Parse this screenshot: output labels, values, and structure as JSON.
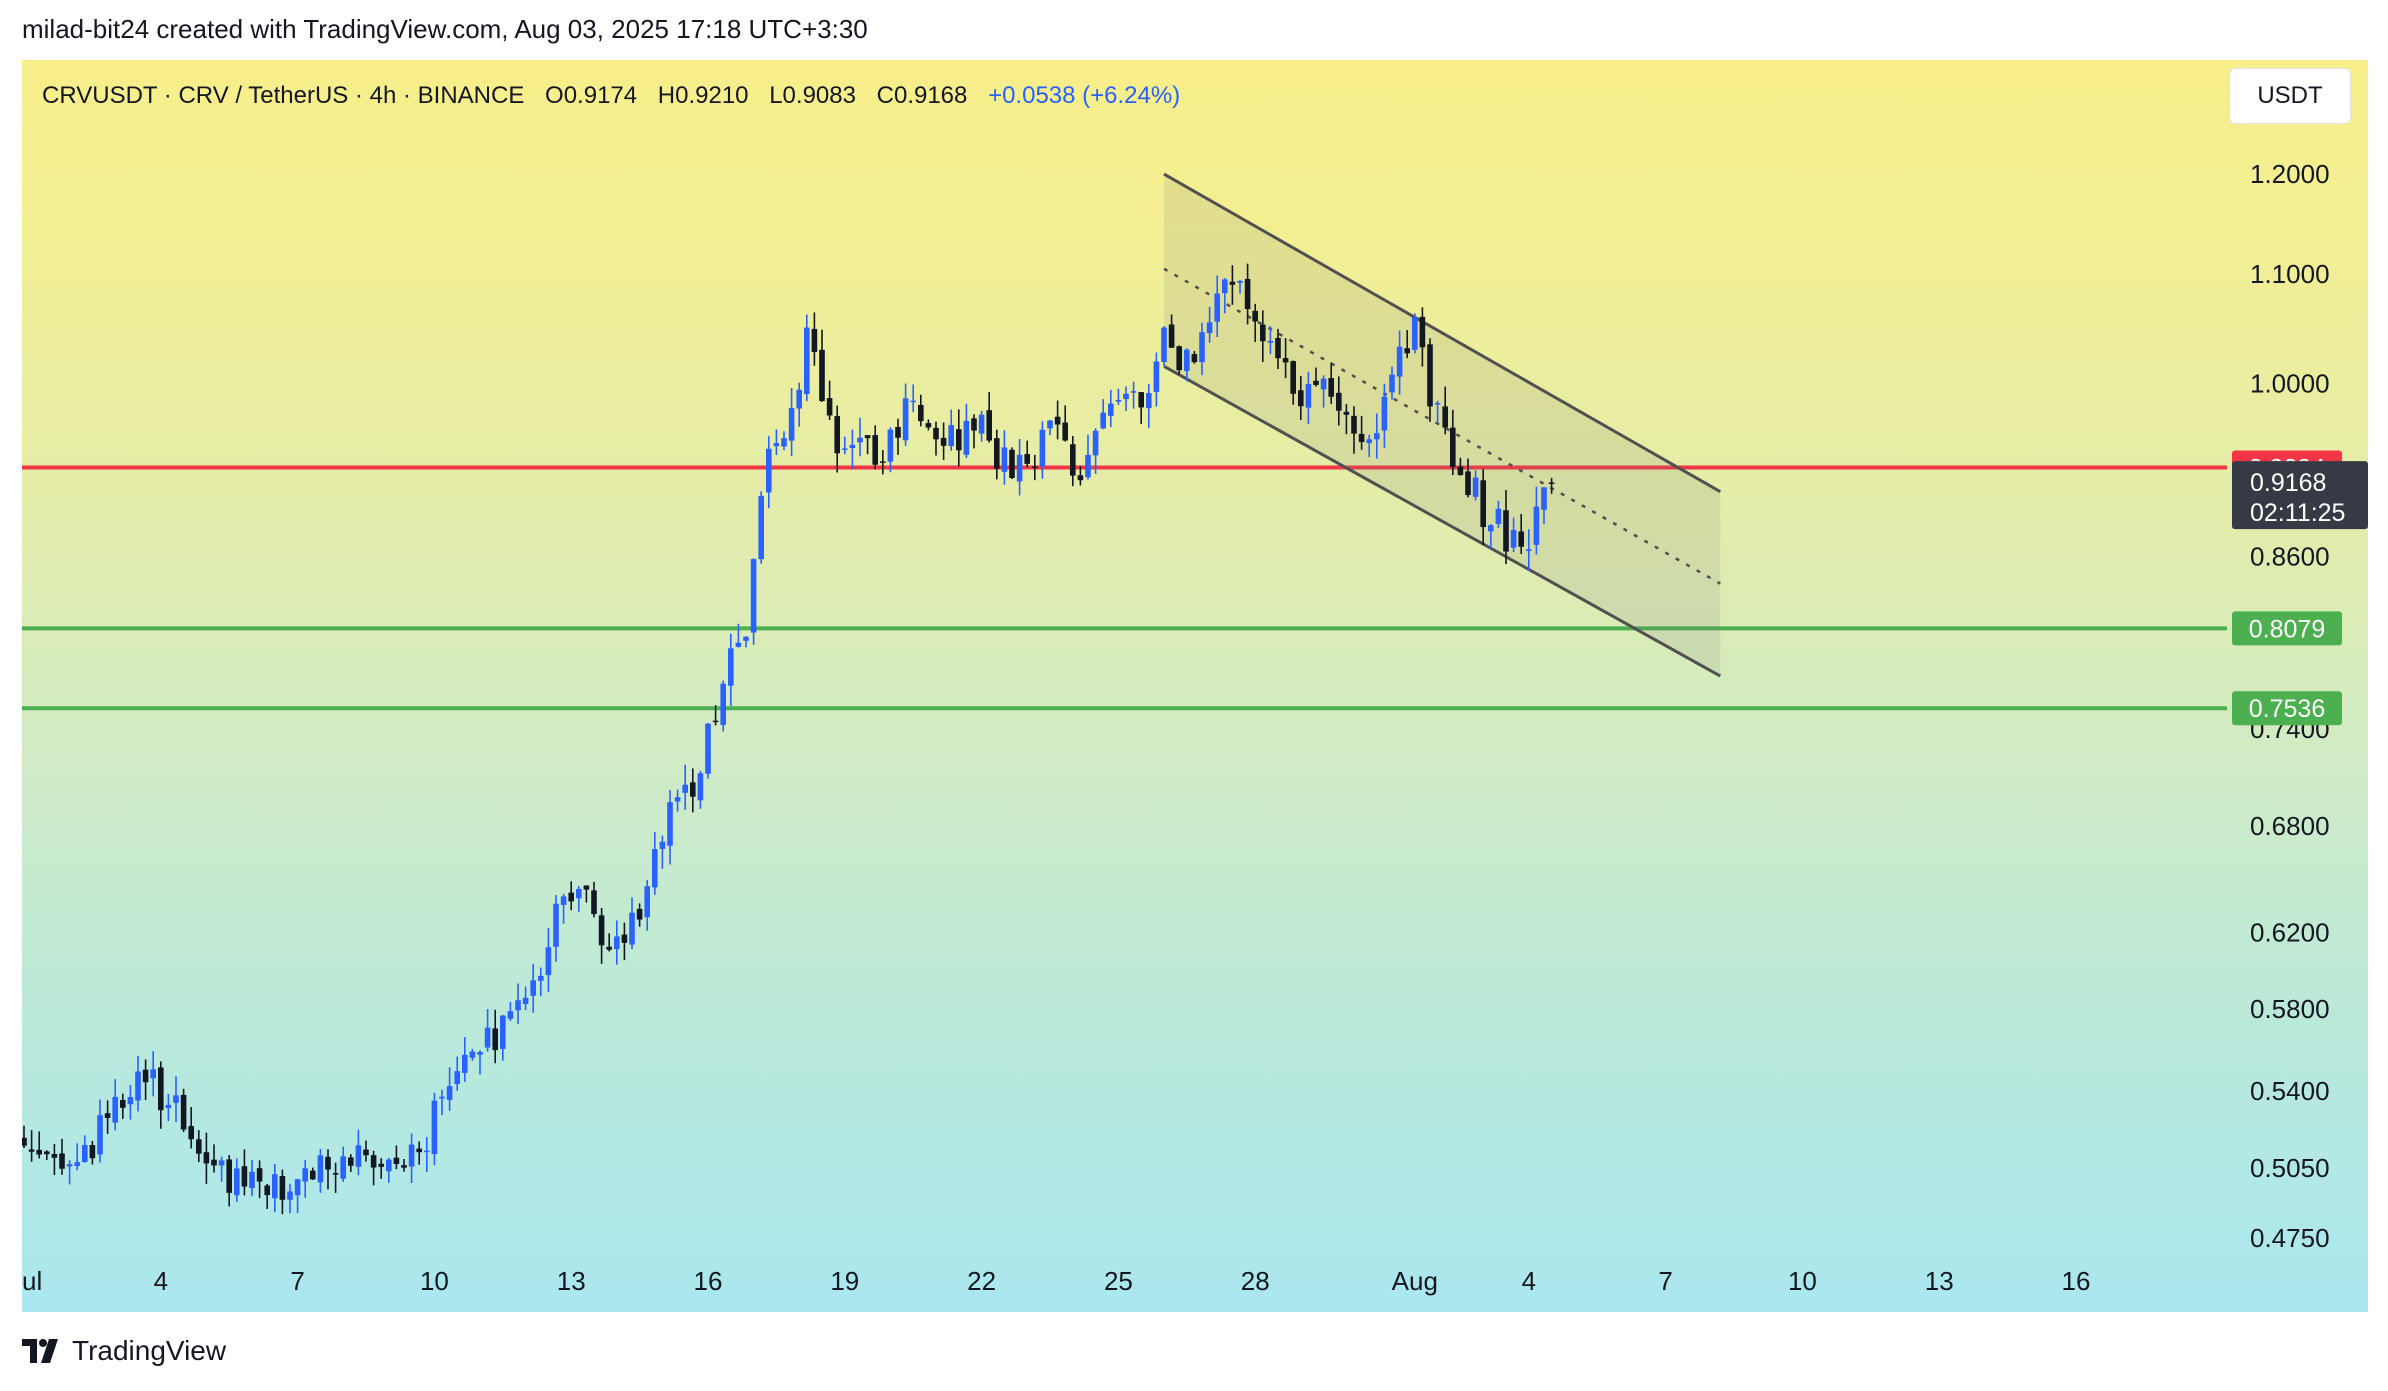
{
  "credit": "milad-bit24 created with TradingView.com, Aug 03, 2025 17:18 UTC+3:30",
  "header": {
    "symbol": "CRVUSDT · CRV / TetherUS · 4h · BINANCE",
    "open": "O0.9174",
    "high": "H0.9210",
    "low": "L0.9083",
    "close": "C0.9168",
    "change": "+0.0538 (+6.24%)"
  },
  "currency_button": "USDT",
  "footer_logo_text": "TradingView",
  "colors": {
    "up": "#2962ff",
    "down": "#131722",
    "resistance": "#f23645",
    "support": "#4caf50",
    "channel": "#505050",
    "last_price_tag": "#363a45"
  },
  "chart_data": {
    "type": "candlestick",
    "symbol": "CRVUSDT",
    "interval": "4h",
    "y_scale": "log",
    "ylim": [
      0.458,
      1.28
    ],
    "y_ticks": [
      "1.2000",
      "1.1000",
      "1.0000",
      "0.6800",
      "0.6200",
      "0.5800",
      "0.5400",
      "0.5050",
      "0.4750"
    ],
    "hidden_y_ticks": [
      "0.8600",
      "0.7400"
    ],
    "x_ticks": [
      {
        "label": "ul",
        "day": 0
      },
      {
        "label": "4",
        "day": 3
      },
      {
        "label": "7",
        "day": 6
      },
      {
        "label": "10",
        "day": 9
      },
      {
        "label": "13",
        "day": 12
      },
      {
        "label": "16",
        "day": 15
      },
      {
        "label": "19",
        "day": 18
      },
      {
        "label": "22",
        "day": 21
      },
      {
        "label": "25",
        "day": 24
      },
      {
        "label": "28",
        "day": 27
      },
      {
        "label": "Aug",
        "day": 30.5
      },
      {
        "label": "4",
        "day": 33
      },
      {
        "label": "7",
        "day": 36
      },
      {
        "label": "10",
        "day": 39
      },
      {
        "label": "13",
        "day": 42
      },
      {
        "label": "16",
        "day": 45
      }
    ],
    "xlim_days": [
      0,
      47.3
    ],
    "close_path": [
      [
        0,
        0.518
      ],
      [
        1.0,
        0.505
      ],
      [
        1.7,
        0.522
      ],
      [
        2.3,
        0.54
      ],
      [
        2.7,
        0.548
      ],
      [
        3.0,
        0.538
      ],
      [
        3.3,
        0.532
      ],
      [
        3.8,
        0.506
      ],
      [
        4.5,
        0.501
      ],
      [
        5.3,
        0.498
      ],
      [
        6.0,
        0.5
      ],
      [
        6.7,
        0.508
      ],
      [
        7.5,
        0.512
      ],
      [
        8.3,
        0.51
      ],
      [
        8.7,
        0.514
      ],
      [
        9.0,
        0.528
      ],
      [
        9.5,
        0.552
      ],
      [
        10.0,
        0.564
      ],
      [
        10.6,
        0.569
      ],
      [
        11.0,
        0.58
      ],
      [
        11.5,
        0.62
      ],
      [
        11.8,
        0.643
      ],
      [
        12.3,
        0.636
      ],
      [
        12.7,
        0.612
      ],
      [
        13.3,
        0.624
      ],
      [
        13.9,
        0.662
      ],
      [
        14.3,
        0.7
      ],
      [
        14.8,
        0.71
      ],
      [
        15.0,
        0.735
      ],
      [
        15.5,
        0.785
      ],
      [
        15.9,
        0.82
      ],
      [
        16.1,
        0.905
      ],
      [
        16.4,
        0.955
      ],
      [
        16.8,
        0.975
      ],
      [
        17.2,
        1.045
      ],
      [
        17.5,
        1.0
      ],
      [
        17.9,
        0.94
      ],
      [
        18.2,
        0.965
      ],
      [
        18.6,
        0.935
      ],
      [
        19.2,
        0.965
      ],
      [
        19.6,
        0.985
      ],
      [
        20.0,
        0.965
      ],
      [
        20.6,
        0.955
      ],
      [
        21.0,
        0.975
      ],
      [
        21.4,
        0.935
      ],
      [
        21.9,
        0.925
      ],
      [
        22.4,
        0.96
      ],
      [
        22.8,
        0.95
      ],
      [
        23.1,
        0.925
      ],
      [
        23.5,
        0.955
      ],
      [
        24.0,
        0.975
      ],
      [
        24.6,
        0.985
      ],
      [
        24.9,
        1.05
      ],
      [
        25.3,
        1.02
      ],
      [
        25.9,
        1.045
      ],
      [
        26.3,
        1.08
      ],
      [
        26.6,
        1.095
      ],
      [
        26.9,
        1.06
      ],
      [
        27.5,
        1.025
      ],
      [
        28.1,
        0.985
      ],
      [
        28.6,
        1.01
      ],
      [
        29.0,
        0.975
      ],
      [
        29.5,
        0.955
      ],
      [
        30.0,
        1.01
      ],
      [
        30.5,
        1.05
      ],
      [
        30.9,
        0.985
      ],
      [
        31.3,
        0.935
      ],
      [
        31.7,
        0.92
      ],
      [
        32.0,
        0.895
      ],
      [
        32.4,
        0.88
      ],
      [
        32.8,
        0.865
      ],
      [
        33.0,
        0.86
      ],
      [
        33.2,
        0.895
      ],
      [
        33.5,
        0.9168
      ]
    ],
    "last_price": 0.9168,
    "countdown": "02:11:25",
    "horizontal_levels": [
      {
        "price": 0.9294,
        "label": "0.9294",
        "kind": "resistance"
      },
      {
        "price": 0.8079,
        "label": "0.8079",
        "kind": "support"
      },
      {
        "price": 0.7536,
        "label": "0.7536",
        "kind": "support"
      }
    ],
    "descending_channel": {
      "upper": [
        [
          25.0,
          1.2
        ],
        [
          37.2,
          0.91
        ]
      ],
      "lower": [
        [
          25.0,
          1.015
        ],
        [
          37.2,
          0.775
        ]
      ],
      "midline": [
        [
          25.0,
          1.105
        ],
        [
          37.2,
          0.84
        ]
      ]
    }
  }
}
